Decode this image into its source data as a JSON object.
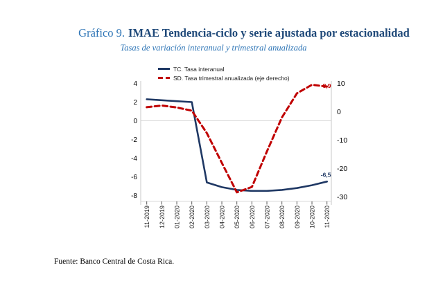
{
  "title": {
    "prefix": "Gráfico 9.",
    "main": "IMAE Tendencia-ciclo y serie ajustada por estacionalidad"
  },
  "subtitle": "Tasas de variación interanual y trimestral anualizada",
  "legend": [
    {
      "label": "TC. Tasa interanual",
      "color": "#1f3864",
      "style": "solid"
    },
    {
      "label": "SD. Tasa trimestral anualizada (eje derecho)",
      "color": "#c00000",
      "style": "dashed"
    }
  ],
  "footer": "Fuente: Banco Central de Costa Rica.",
  "colors": {
    "title_prefix": "#2e75b6",
    "title_main": "#1f4979",
    "subtitle": "#2e75b6",
    "tc_line": "#1f3864",
    "sd_line": "#c00000",
    "axis_text": "#000000",
    "gridline": "#d9d9d9",
    "axis_line": "#c8c8c8",
    "tick_mark": "#555555"
  },
  "chart_data": {
    "type": "line",
    "categories": [
      "11-2019",
      "12-2019",
      "01-2020",
      "02-2020",
      "03-2020",
      "04-2020",
      "05-2020",
      "06-2020",
      "07-2020",
      "08-2020",
      "09-2020",
      "10-2020",
      "11-2020"
    ],
    "series": [
      {
        "name": "TC. Tasa interanual",
        "axis": "left",
        "color": "#1f3864",
        "dash": false,
        "values": [
          2.3,
          2.2,
          2.1,
          2.0,
          -6.6,
          -7.1,
          -7.4,
          -7.5,
          -7.5,
          -7.4,
          -7.2,
          -6.9,
          -6.5
        ]
      },
      {
        "name": "SD. Tasa trimestral anualizada (eje derecho)",
        "axis": "right",
        "color": "#c00000",
        "dash": true,
        "values": [
          1.6,
          2.2,
          1.5,
          0.4,
          -7.5,
          -18.0,
          -28.4,
          -26.5,
          -14.0,
          -2.0,
          6.5,
          9.5,
          8.9
        ]
      }
    ],
    "left_axis": {
      "min": -8,
      "max": 4,
      "ticks": [
        4,
        2,
        0,
        -2,
        -4,
        -6,
        -8
      ]
    },
    "right_axis": {
      "min": -30,
      "max": 10,
      "ticks": [
        10,
        0,
        -10,
        -20,
        -30
      ]
    },
    "annotations": [
      {
        "text": "-6,5",
        "value": -6.5,
        "axis": "left",
        "color": "#1f3864"
      },
      {
        "text": "8,9",
        "value": 8.9,
        "axis": "right",
        "color": "#c00000"
      }
    ],
    "gridline_at_left_zero": true,
    "legend_position": "top-inside",
    "title": "Gráfico 9. IMAE Tendencia-ciclo y serie ajustada por estacionalidad",
    "xlabel": "",
    "ylabel": ""
  }
}
